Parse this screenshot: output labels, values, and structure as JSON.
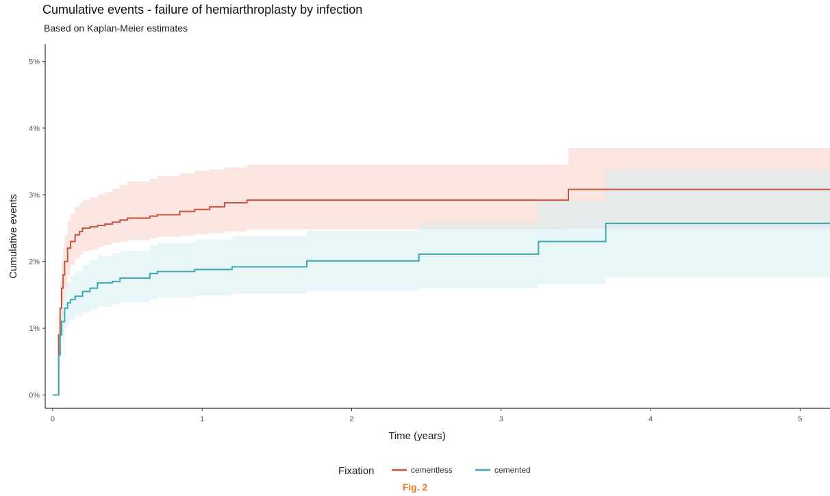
{
  "chart_data": {
    "type": "line",
    "title": "Cumulative events - failure of hemiarthroplasty by infection",
    "subtitle": "Based on Kaplan-Meier estimates",
    "xlabel": "Time (years)",
    "ylabel": "Cumulative events",
    "xlim": [
      -0.05,
      5.2
    ],
    "ylim": [
      -0.002,
      0.052
    ],
    "x_ticks": [
      0,
      1,
      2,
      3,
      4,
      5
    ],
    "x_tick_labels": [
      "0",
      "1",
      "2",
      "3",
      "4",
      "5"
    ],
    "y_ticks": [
      0,
      0.01,
      0.02,
      0.03,
      0.04,
      0.05
    ],
    "y_tick_labels": [
      "0%",
      "1%",
      "2%",
      "3%",
      "4%",
      "5%"
    ],
    "grid": false,
    "step": true,
    "legend": {
      "title": "Fixation",
      "position": "bottom",
      "entries": [
        "cementless",
        "cemented"
      ]
    },
    "series": [
      {
        "name": "cementless",
        "color": "#c8553d",
        "band_color": "#f8cfc6",
        "x": [
          0,
          0.02,
          0.04,
          0.05,
          0.06,
          0.07,
          0.08,
          0.1,
          0.12,
          0.15,
          0.18,
          0.2,
          0.25,
          0.3,
          0.35,
          0.4,
          0.45,
          0.5,
          0.65,
          0.7,
          0.85,
          0.95,
          1.05,
          1.15,
          1.3,
          3.45,
          5.2
        ],
        "y": [
          0,
          0.0,
          0.009,
          0.013,
          0.016,
          0.018,
          0.02,
          0.022,
          0.023,
          0.024,
          0.0245,
          0.025,
          0.0252,
          0.0254,
          0.0256,
          0.0259,
          0.0262,
          0.0265,
          0.0268,
          0.027,
          0.0275,
          0.0278,
          0.0282,
          0.0288,
          0.0292,
          0.0308,
          0.0308
        ],
        "lower": [
          0,
          0.0,
          0.006,
          0.009,
          0.012,
          0.014,
          0.016,
          0.018,
          0.0195,
          0.0205,
          0.021,
          0.0215,
          0.0218,
          0.0222,
          0.0225,
          0.0228,
          0.023,
          0.0232,
          0.0235,
          0.0237,
          0.0239,
          0.0241,
          0.0243,
          0.0245,
          0.0248,
          0.025,
          0.025
        ],
        "upper": [
          0,
          0.0,
          0.012,
          0.017,
          0.02,
          0.022,
          0.024,
          0.026,
          0.0272,
          0.0282,
          0.0288,
          0.0292,
          0.0296,
          0.03,
          0.0304,
          0.0309,
          0.0315,
          0.032,
          0.0324,
          0.0328,
          0.0332,
          0.0336,
          0.0338,
          0.0341,
          0.0345,
          0.037,
          0.037
        ]
      },
      {
        "name": "cemented",
        "color": "#3fa7b3",
        "band_color": "#d5eef2",
        "x": [
          0,
          0.02,
          0.04,
          0.05,
          0.06,
          0.08,
          0.1,
          0.12,
          0.15,
          0.2,
          0.25,
          0.3,
          0.4,
          0.45,
          0.65,
          0.7,
          0.95,
          1.2,
          1.7,
          2.45,
          3.25,
          3.7,
          5.2
        ],
        "y": [
          0,
          0.0,
          0.006,
          0.009,
          0.011,
          0.013,
          0.0138,
          0.0143,
          0.0148,
          0.0155,
          0.016,
          0.0168,
          0.017,
          0.0175,
          0.0182,
          0.0185,
          0.0188,
          0.0192,
          0.0201,
          0.0211,
          0.023,
          0.0257,
          0.0257
        ],
        "lower": [
          0,
          0.0,
          0.003,
          0.006,
          0.008,
          0.01,
          0.0108,
          0.0113,
          0.0117,
          0.0123,
          0.0128,
          0.0132,
          0.0136,
          0.0139,
          0.0143,
          0.0146,
          0.0149,
          0.0152,
          0.0156,
          0.016,
          0.0166,
          0.0176,
          0.0176
        ],
        "upper": [
          0,
          0.0,
          0.009,
          0.012,
          0.014,
          0.016,
          0.017,
          0.0178,
          0.0185,
          0.0195,
          0.0202,
          0.0208,
          0.0212,
          0.0216,
          0.0224,
          0.0228,
          0.0233,
          0.0238,
          0.0246,
          0.0257,
          0.029,
          0.0336,
          0.0336
        ]
      }
    ]
  },
  "caption": {
    "text": "Fig. 2",
    "color": "#f07a20"
  },
  "axis_color": "#333333",
  "tick_label_color": "#555555"
}
